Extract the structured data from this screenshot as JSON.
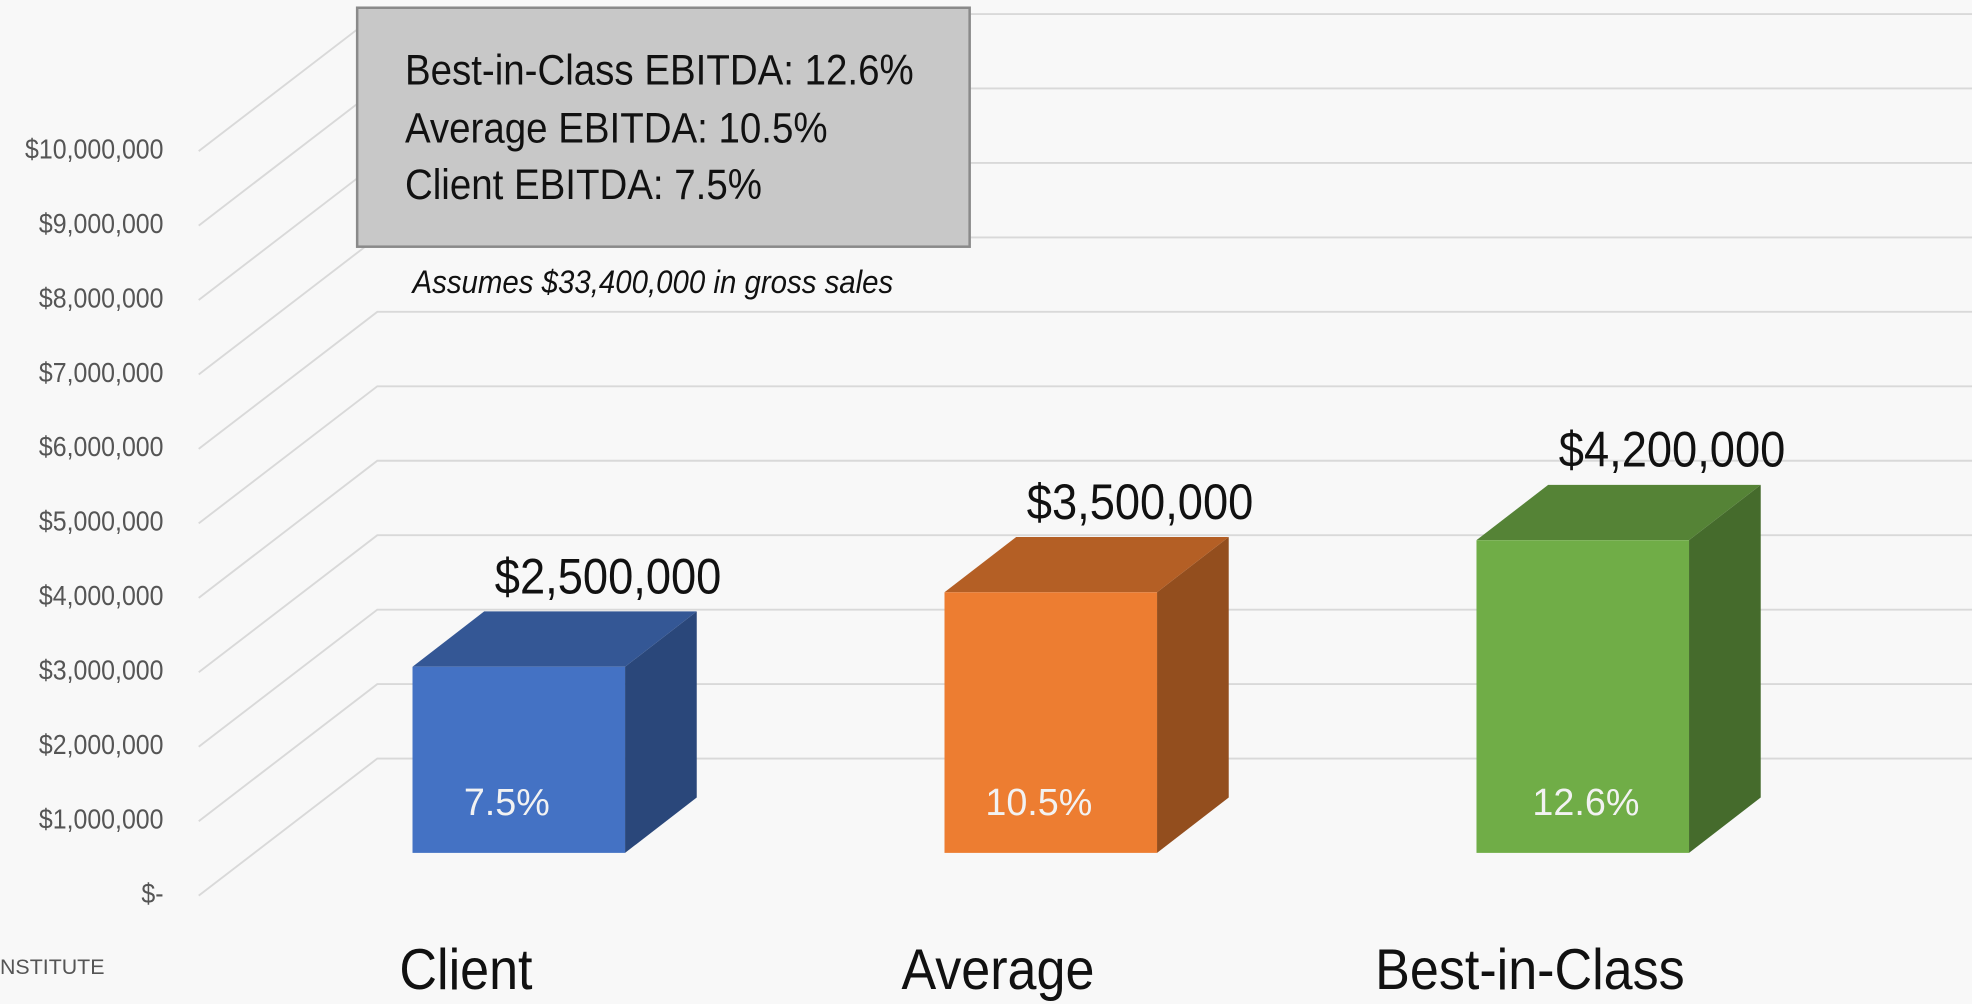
{
  "chart_data": {
    "type": "bar3d",
    "categories": [
      "Client",
      "Average",
      "Best-in-Class"
    ],
    "values": [
      2500000,
      3500000,
      4200000
    ],
    "value_labels": [
      "$2,500,000",
      "$3,500,000",
      "$4,200,000"
    ],
    "inner_labels": [
      "7.5%",
      "10.5%",
      "12.6%"
    ],
    "colors": [
      "#4472c4",
      "#ed7d31",
      "#70ad47"
    ],
    "ylim": [
      0,
      10000000
    ],
    "yticks": [
      {
        "value": 0,
        "label": "$-"
      },
      {
        "value": 1000000,
        "label": "$1,000,000"
      },
      {
        "value": 2000000,
        "label": "$2,000,000"
      },
      {
        "value": 3000000,
        "label": "$3,000,000"
      },
      {
        "value": 4000000,
        "label": "$4,000,000"
      },
      {
        "value": 5000000,
        "label": "$5,000,000"
      },
      {
        "value": 6000000,
        "label": "$6,000,000"
      },
      {
        "value": 7000000,
        "label": "$7,000,000"
      },
      {
        "value": 8000000,
        "label": "$8,000,000"
      },
      {
        "value": 9000000,
        "label": "$9,000,000"
      },
      {
        "value": 10000000,
        "label": "$10,000,000"
      }
    ],
    "grid": true,
    "text_box": [
      "Best-in-Class EBITDA: 12.6%",
      "Average EBITDA: 10.5%",
      "Client EBITDA: 7.5%"
    ],
    "annotation": "Assumes $33,400,000 in gross sales",
    "footer": "NSTITUTE"
  }
}
